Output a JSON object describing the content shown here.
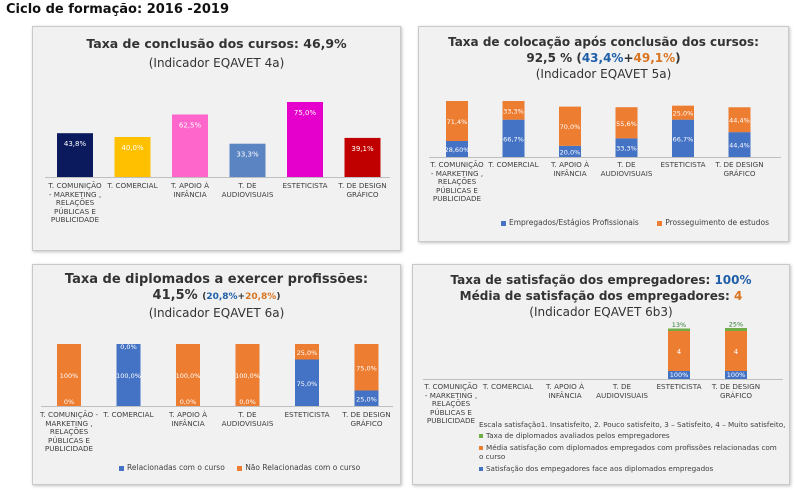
{
  "page_title": "Ciclo de formação: 2016 -2019",
  "colors": {
    "navy": "#0b1a5c",
    "gold": "#ffc000",
    "pink": "#ff66cc",
    "steel": "#5b84c2",
    "magenta": "#e600cc",
    "red": "#c00000",
    "blue": "#4472c4",
    "orange": "#ed7d31",
    "green": "#70ad47"
  },
  "chart_data": [
    {
      "type": "bar",
      "title": "Taxa de conclusão dos cursos: ",
      "title_value": "46,9%",
      "subtitle": "(Indicador EQAVET 4a)",
      "categories": [
        "T. COMUNIÇÃO - MARKETING , RELAÇÕES PÚBLICAS E PUBLICIDADE",
        "T. COMERCIAL",
        "T. APOIO À INFÂNCIA",
        "T. DE AUDIOVISUAIS",
        "ESTETICISTA",
        "T. DE DESIGN GRÁFICO"
      ],
      "values": [
        43.8,
        40.0,
        62.5,
        33.3,
        75.0,
        39.1
      ],
      "value_labels": [
        "43,8%",
        "40,0%",
        "62,5%",
        "33,3%",
        "75,0%",
        "39,1%"
      ],
      "bar_colors": [
        "#0b1a5c",
        "#ffc000",
        "#ff66cc",
        "#5b84c2",
        "#e600cc",
        "#c00000"
      ],
      "ylim": [
        0,
        100
      ]
    },
    {
      "type": "bar",
      "stacked": true,
      "title": "Taxa de colocação após conclusão dos cursos:",
      "summary_value": "92,5 %",
      "summary_part1": "43,4%",
      "summary_plus": "+",
      "summary_part2": "49,1%",
      "subtitle": "(Indicador EQAVET 5a)",
      "categories": [
        "T. COMUNIÇÃO - MARKETING , RELAÇÕES PÚBLICAS E PUBLICIDADE",
        "T. COMERCIAL",
        "T. APOIO À INFÂNCIA",
        "T. DE AUDIOVISUAIS",
        "ESTETICISTA",
        "T. DE DESIGN GRÁFICO"
      ],
      "series": [
        {
          "name": "Empregados/Estágios Profissionais",
          "values": [
            28.6,
            66.7,
            20.0,
            33.3,
            66.7,
            44.4
          ],
          "labels": [
            "28,60%",
            "66,7%",
            "20,0%",
            "33,3%",
            "66,7%",
            "44,4%"
          ],
          "color": "#4472c4"
        },
        {
          "name": "Prosseguimento de estudos",
          "values": [
            71.4,
            33.3,
            70.0,
            55.6,
            25.0,
            44.4
          ],
          "labels": [
            "71,4%",
            "33,3%",
            "70,0%",
            "55,6%",
            "25,0%",
            "44,4%"
          ],
          "color": "#ed7d31"
        }
      ],
      "ylim": [
        0,
        100
      ]
    },
    {
      "type": "bar",
      "stacked": true,
      "title": "Taxa de diplomados a exercer profissões:",
      "summary_value": "41,5%",
      "summary_part1": "20,8%",
      "summary_plus": "+",
      "summary_part2": "20,8%",
      "subtitle": "(Indicador EQAVET 6a)",
      "categories": [
        "T. COMUNIÇÃO - MARKETING , RELAÇÕES PÚBLICAS E PUBLICIDADE",
        "T. COMERCIAL",
        "T. APOIO À INFÂNCIA",
        "T. DE AUDIOVISUAIS",
        "ESTETICISTA",
        "T. DE DESIGN GRÁFICO"
      ],
      "series": [
        {
          "name": "Relacionadas com o curso",
          "values": [
            0,
            100,
            0,
            0,
            75,
            25
          ],
          "labels": [
            "0%",
            "100,0%",
            "0,0%",
            "0,0%",
            "75,0%",
            "25,0%"
          ],
          "color": "#4472c4"
        },
        {
          "name": "Não Relacionadas com o curso",
          "values": [
            100,
            0,
            100,
            100,
            25,
            75
          ],
          "labels": [
            "100%",
            "0,0%",
            "100,0%",
            "100,0%",
            "25,0%",
            "75,0%"
          ],
          "color": "#ed7d31"
        }
      ],
      "ylim": [
        0,
        100
      ]
    },
    {
      "type": "bar",
      "stacked": true,
      "title": "Taxa de satisfação dos empregadores: ",
      "title_value": "100%",
      "title2": "Média de satisfação dos empregadores: ",
      "title2_value": "4",
      "subtitle": "(Indicador EQAVET 6b3)",
      "categories": [
        "T. COMUNIÇÃO - MARKETING , RELAÇÕES PÚBLICAS E PUBLICIDADE",
        "T. COMERCIAL",
        "T. APOIO À INFÂNCIA",
        "T. DE AUDIOVISUAIS",
        "ESTETICISTA",
        "T. DE DESIGN GRÁFICO"
      ],
      "series": [
        {
          "name": "Satisfação dos empegadores face aos diplomados empregados",
          "values": [
            0,
            0,
            0,
            0,
            100,
            100
          ],
          "labels": [
            "",
            "",
            "",
            "",
            "100%",
            "100%"
          ],
          "color": "#4472c4"
        },
        {
          "name": "Média satisfação com diplomados empregados com profissões relacionadas com o curso",
          "values": [
            0,
            0,
            0,
            0,
            4,
            4
          ],
          "labels": [
            "",
            "",
            "",
            "",
            "4",
            "4"
          ],
          "color": "#ed7d31"
        },
        {
          "name": "Taxa de diplomados avaliados pelos empregadores",
          "values": [
            0,
            0,
            0,
            0,
            13,
            25
          ],
          "labels": [
            "",
            "",
            "",
            "",
            "13%",
            "25%"
          ],
          "color": "#70ad47"
        }
      ],
      "scale_note": "Escala satisfação1. Insatisfeito, 2. Pouco satisfeito, 3 – Satisfeito, 4 – Muito satisfeito,"
    }
  ]
}
